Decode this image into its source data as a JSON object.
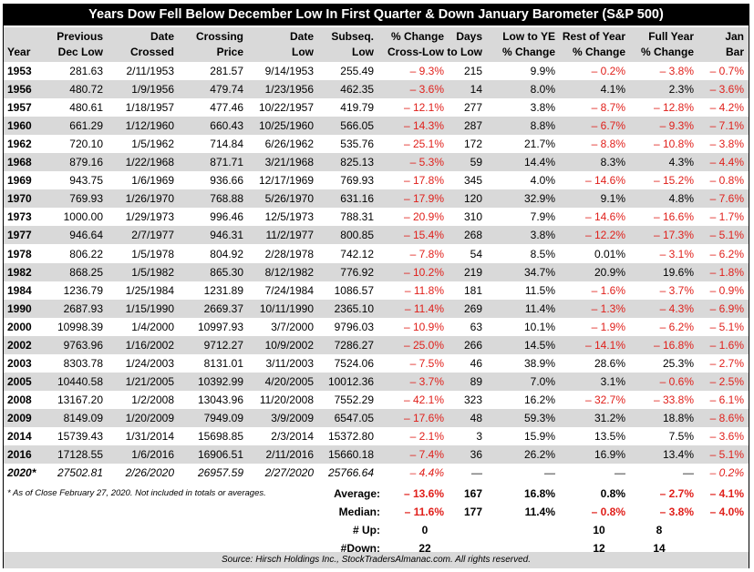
{
  "title": "Years Dow Fell Below December Low In First Quarter & Down January Barometer (S&P 500)",
  "headers": [
    {
      "l1": "",
      "l2": "Year"
    },
    {
      "l1": "Previous",
      "l2": "Dec Low"
    },
    {
      "l1": "Date",
      "l2": "Crossed"
    },
    {
      "l1": "Crossing",
      "l2": "Price"
    },
    {
      "l1": "Date",
      "l2": "Low"
    },
    {
      "l1": "Subseq.",
      "l2": "Low"
    },
    {
      "l1": "% Change",
      "l2": "Cross-Low"
    },
    {
      "l1": "Days",
      "l2": "to Low"
    },
    {
      "l1": "Low to YE",
      "l2": "% Change"
    },
    {
      "l1": "Rest of Year",
      "l2": "% Change"
    },
    {
      "l1": "Full Year",
      "l2": "% Change"
    },
    {
      "l1": "Jan",
      "l2": "Bar"
    }
  ],
  "rows": [
    [
      "1953",
      "281.63",
      "2/11/1953",
      "281.57",
      "9/14/1953",
      "255.49",
      "– 9.3%",
      "215",
      "9.9%",
      "– 0.2%",
      "– 3.8%",
      "– 0.7%"
    ],
    [
      "1956",
      "480.72",
      "1/9/1956",
      "479.74",
      "1/23/1956",
      "462.35",
      "– 3.6%",
      "14",
      "8.0%",
      "4.1%",
      "2.3%",
      "– 3.6%"
    ],
    [
      "1957",
      "480.61",
      "1/18/1957",
      "477.46",
      "10/22/1957",
      "419.79",
      "– 12.1%",
      "277",
      "3.8%",
      "– 8.7%",
      "– 12.8%",
      "– 4.2%"
    ],
    [
      "1960",
      "661.29",
      "1/12/1960",
      "660.43",
      "10/25/1960",
      "566.05",
      "– 14.3%",
      "287",
      "8.8%",
      "– 6.7%",
      "– 9.3%",
      "– 7.1%"
    ],
    [
      "1962",
      "720.10",
      "1/5/1962",
      "714.84",
      "6/26/1962",
      "535.76",
      "– 25.1%",
      "172",
      "21.7%",
      "– 8.8%",
      "– 10.8%",
      "– 3.8%"
    ],
    [
      "1968",
      "879.16",
      "1/22/1968",
      "871.71",
      "3/21/1968",
      "825.13",
      "– 5.3%",
      "59",
      "14.4%",
      "8.3%",
      "4.3%",
      "– 4.4%"
    ],
    [
      "1969",
      "943.75",
      "1/6/1969",
      "936.66",
      "12/17/1969",
      "769.93",
      "– 17.8%",
      "345",
      "4.0%",
      "– 14.6%",
      "– 15.2%",
      "– 0.8%"
    ],
    [
      "1970",
      "769.93",
      "1/26/1970",
      "768.88",
      "5/26/1970",
      "631.16",
      "– 17.9%",
      "120",
      "32.9%",
      "9.1%",
      "4.8%",
      "– 7.6%"
    ],
    [
      "1973",
      "1000.00",
      "1/29/1973",
      "996.46",
      "12/5/1973",
      "788.31",
      "– 20.9%",
      "310",
      "7.9%",
      "– 14.6%",
      "– 16.6%",
      "– 1.7%"
    ],
    [
      "1977",
      "946.64",
      "2/7/1977",
      "946.31",
      "11/2/1977",
      "800.85",
      "– 15.4%",
      "268",
      "3.8%",
      "– 12.2%",
      "– 17.3%",
      "– 5.1%"
    ],
    [
      "1978",
      "806.22",
      "1/5/1978",
      "804.92",
      "2/28/1978",
      "742.12",
      "– 7.8%",
      "54",
      "8.5%",
      "0.01%",
      "– 3.1%",
      "– 6.2%"
    ],
    [
      "1982",
      "868.25",
      "1/5/1982",
      "865.30",
      "8/12/1982",
      "776.92",
      "– 10.2%",
      "219",
      "34.7%",
      "20.9%",
      "19.6%",
      "– 1.8%"
    ],
    [
      "1984",
      "1236.79",
      "1/25/1984",
      "1231.89",
      "7/24/1984",
      "1086.57",
      "– 11.8%",
      "181",
      "11.5%",
      "– 1.6%",
      "– 3.7%",
      "– 0.9%"
    ],
    [
      "1990",
      "2687.93",
      "1/15/1990",
      "2669.37",
      "10/11/1990",
      "2365.10",
      "– 11.4%",
      "269",
      "11.4%",
      "– 1.3%",
      "– 4.3%",
      "– 6.9%"
    ],
    [
      "2000",
      "10998.39",
      "1/4/2000",
      "10997.93",
      "3/7/2000",
      "9796.03",
      "– 10.9%",
      "63",
      "10.1%",
      "– 1.9%",
      "– 6.2%",
      "– 5.1%"
    ],
    [
      "2002",
      "9763.96",
      "1/16/2002",
      "9712.27",
      "10/9/2002",
      "7286.27",
      "– 25.0%",
      "266",
      "14.5%",
      "– 14.1%",
      "– 16.8%",
      "– 1.6%"
    ],
    [
      "2003",
      "8303.78",
      "1/24/2003",
      "8131.01",
      "3/11/2003",
      "7524.06",
      "– 7.5%",
      "46",
      "38.9%",
      "28.6%",
      "25.3%",
      "– 2.7%"
    ],
    [
      "2005",
      "10440.58",
      "1/21/2005",
      "10392.99",
      "4/20/2005",
      "10012.36",
      "– 3.7%",
      "89",
      "7.0%",
      "3.1%",
      "– 0.6%",
      "– 2.5%"
    ],
    [
      "2008",
      "13167.20",
      "1/2/2008",
      "13043.96",
      "11/20/2008",
      "7552.29",
      "– 42.1%",
      "323",
      "16.2%",
      "– 32.7%",
      "– 33.8%",
      "– 6.1%"
    ],
    [
      "2009",
      "8149.09",
      "1/20/2009",
      "7949.09",
      "3/9/2009",
      "6547.05",
      "– 17.6%",
      "48",
      "59.3%",
      "31.2%",
      "18.8%",
      "– 8.6%"
    ],
    [
      "2014",
      "15739.43",
      "1/31/2014",
      "15698.85",
      "2/3/2014",
      "15372.80",
      "– 2.1%",
      "3",
      "15.9%",
      "13.5%",
      "7.5%",
      "– 3.6%"
    ],
    [
      "2016",
      "17128.55",
      "1/6/2016",
      "16906.51",
      "2/11/2016",
      "15660.18",
      "– 7.4%",
      "36",
      "26.2%",
      "16.9%",
      "13.4%",
      "– 5.1%"
    ]
  ],
  "row2020": [
    "2020*",
    "27502.81",
    "2/26/2020",
    "26957.59",
    "2/27/2020",
    "25766.64",
    "– 4.4%",
    "—",
    "—",
    "—",
    "—",
    "– 0.2%"
  ],
  "footnote": "* As of Close February 27, 2020. Not included in totals or averages.",
  "summary": {
    "average": {
      "label": "Average:",
      "values": [
        "– 13.6%",
        "167",
        "16.8%",
        "0.8%",
        "– 2.7%",
        "– 4.1%"
      ]
    },
    "median": {
      "label": "Median:",
      "values": [
        "– 11.6%",
        "177",
        "11.4%",
        "– 0.8%",
        "– 3.8%",
        "– 4.0%"
      ]
    },
    "up": {
      "label": "# Up:",
      "values": [
        "0",
        "",
        "",
        "10",
        "8",
        ""
      ]
    },
    "down": {
      "label": "#Down:",
      "values": [
        "22",
        "",
        "",
        "12",
        "14",
        ""
      ]
    }
  },
  "source": "Source: Hirsch Holdings Inc., StockTradersAlmanac.com. All rights reserved.",
  "colors": {
    "negative": "#e0201b",
    "shade": "#d9d9d9",
    "title_bg": "#000000"
  }
}
